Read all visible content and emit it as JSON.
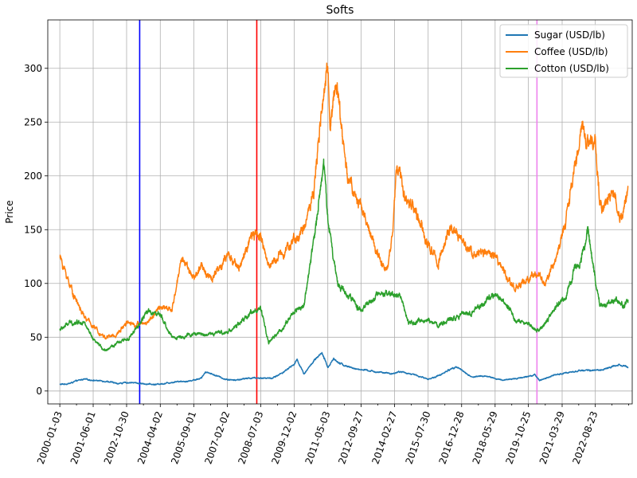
{
  "chart_data": {
    "type": "line",
    "title": "Softs",
    "xlabel": "",
    "ylabel": "Price",
    "xlim": [
      "1999-07-01",
      "2024-03-15"
    ],
    "ylim": [
      -12,
      345
    ],
    "grid": true,
    "legend_position": "top-right",
    "x_ticks": [
      "2000-01-03",
      "2001-06-01",
      "2002-10-30",
      "2004-04-02",
      "2005-09-01",
      "2007-02-02",
      "2008-07-03",
      "2009-12-02",
      "2011-05-03",
      "2012-09-27",
      "2014-02-27",
      "2015-07-30",
      "2016-12-28",
      "2018-05-29",
      "2019-10-25",
      "2021-03-29",
      "2022-08-23"
    ],
    "y_ticks": [
      0,
      50,
      100,
      150,
      200,
      250,
      300
    ],
    "vertical_lines": [
      {
        "date": "2003-05-20",
        "color": "#0000ff"
      },
      {
        "date": "2008-05-01",
        "color": "#ff0000"
      },
      {
        "date": "2020-03-05",
        "color": "#ee82ee"
      }
    ],
    "series": [
      {
        "name": "Sugar (USD/lb)",
        "color": "#1f77b4",
        "points": [
          [
            "2000-01-03",
            6
          ],
          [
            "2000-06-01",
            7
          ],
          [
            "2000-09-01",
            9
          ],
          [
            "2001-01-01",
            11
          ],
          [
            "2001-06-01",
            10
          ],
          [
            "2002-01-01",
            9
          ],
          [
            "2002-06-01",
            7
          ],
          [
            "2003-01-01",
            8
          ],
          [
            "2003-06-01",
            7
          ],
          [
            "2004-01-01",
            6
          ],
          [
            "2004-06-01",
            7
          ],
          [
            "2005-01-01",
            9
          ],
          [
            "2005-06-01",
            9
          ],
          [
            "2006-01-01",
            12
          ],
          [
            "2006-03-01",
            18
          ],
          [
            "2006-06-01",
            16
          ],
          [
            "2007-01-01",
            11
          ],
          [
            "2007-06-01",
            10
          ],
          [
            "2008-01-01",
            12
          ],
          [
            "2008-06-01",
            12
          ],
          [
            "2009-01-01",
            12
          ],
          [
            "2009-06-01",
            17
          ],
          [
            "2009-12-01",
            25
          ],
          [
            "2010-01-15",
            29
          ],
          [
            "2010-05-01",
            16
          ],
          [
            "2010-10-01",
            28
          ],
          [
            "2011-02-01",
            35
          ],
          [
            "2011-05-03",
            22
          ],
          [
            "2011-08-01",
            30
          ],
          [
            "2012-01-01",
            24
          ],
          [
            "2012-06-01",
            21
          ],
          [
            "2013-01-01",
            19
          ],
          [
            "2014-01-01",
            16
          ],
          [
            "2014-06-01",
            18
          ],
          [
            "2015-01-01",
            15
          ],
          [
            "2015-08-01",
            11
          ],
          [
            "2016-01-01",
            14
          ],
          [
            "2016-10-01",
            23
          ],
          [
            "2017-06-01",
            13
          ],
          [
            "2018-01-01",
            14
          ],
          [
            "2018-09-01",
            10
          ],
          [
            "2019-06-01",
            12
          ],
          [
            "2020-02-01",
            15
          ],
          [
            "2020-04-15",
            10
          ],
          [
            "2020-12-01",
            15
          ],
          [
            "2021-06-01",
            17
          ],
          [
            "2022-01-01",
            19
          ],
          [
            "2022-06-01",
            19
          ],
          [
            "2023-01-01",
            20
          ],
          [
            "2023-09-01",
            25
          ],
          [
            "2024-01-10",
            22
          ]
        ]
      },
      {
        "name": "Coffee (USD/lb)",
        "color": "#ff7f0e",
        "points": [
          [
            "2000-01-03",
            125
          ],
          [
            "2000-04-01",
            110
          ],
          [
            "2000-08-01",
            90
          ],
          [
            "2001-01-01",
            70
          ],
          [
            "2001-06-01",
            60
          ],
          [
            "2001-12-01",
            50
          ],
          [
            "2002-06-01",
            52
          ],
          [
            "2002-10-30",
            65
          ],
          [
            "2003-03-01",
            62
          ],
          [
            "2003-09-01",
            63
          ],
          [
            "2004-04-02",
            78
          ],
          [
            "2004-10-01",
            75
          ],
          [
            "2005-03-01",
            125
          ],
          [
            "2005-09-01",
            105
          ],
          [
            "2006-01-01",
            115
          ],
          [
            "2006-06-01",
            105
          ],
          [
            "2007-02-02",
            125
          ],
          [
            "2007-08-01",
            115
          ],
          [
            "2008-03-01",
            145
          ],
          [
            "2008-07-03",
            145
          ],
          [
            "2008-11-01",
            115
          ],
          [
            "2009-06-01",
            130
          ],
          [
            "2009-12-02",
            140
          ],
          [
            "2010-05-01",
            150
          ],
          [
            "2010-10-01",
            190
          ],
          [
            "2011-02-01",
            260
          ],
          [
            "2011-05-03",
            300
          ],
          [
            "2011-06-15",
            250
          ],
          [
            "2011-09-01",
            290
          ],
          [
            "2012-03-01",
            200
          ],
          [
            "2012-09-27",
            170
          ],
          [
            "2013-06-01",
            130
          ],
          [
            "2013-11-01",
            110
          ],
          [
            "2014-02-01",
            150
          ],
          [
            "2014-04-01",
            210
          ],
          [
            "2014-08-01",
            180
          ],
          [
            "2015-01-01",
            170
          ],
          [
            "2015-07-30",
            135
          ],
          [
            "2016-01-01",
            120
          ],
          [
            "2016-07-01",
            150
          ],
          [
            "2016-12-28",
            140
          ],
          [
            "2017-06-01",
            130
          ],
          [
            "2018-05-29",
            125
          ],
          [
            "2018-12-01",
            105
          ],
          [
            "2019-05-01",
            95
          ],
          [
            "2019-10-25",
            105
          ],
          [
            "2020-02-01",
            110
          ],
          [
            "2020-07-01",
            100
          ],
          [
            "2021-01-01",
            125
          ],
          [
            "2021-06-01",
            160
          ],
          [
            "2021-10-01",
            205
          ],
          [
            "2022-02-01",
            250
          ],
          [
            "2022-06-01",
            230
          ],
          [
            "2022-08-23",
            235
          ],
          [
            "2022-11-01",
            170
          ],
          [
            "2023-02-01",
            175
          ],
          [
            "2023-06-01",
            185
          ],
          [
            "2023-10-01",
            160
          ],
          [
            "2024-01-10",
            190
          ]
        ]
      },
      {
        "name": "Cotton (USD/lb)",
        "color": "#2ca02c",
        "points": [
          [
            "2000-01-03",
            57
          ],
          [
            "2000-06-01",
            63
          ],
          [
            "2001-01-01",
            65
          ],
          [
            "2001-06-01",
            47
          ],
          [
            "2001-12-01",
            38
          ],
          [
            "2002-06-01",
            44
          ],
          [
            "2002-10-30",
            48
          ],
          [
            "2003-03-01",
            55
          ],
          [
            "2003-10-01",
            75
          ],
          [
            "2004-04-02",
            70
          ],
          [
            "2004-10-01",
            50
          ],
          [
            "2005-03-01",
            50
          ],
          [
            "2005-09-01",
            53
          ],
          [
            "2006-06-01",
            53
          ],
          [
            "2007-02-02",
            55
          ],
          [
            "2007-08-01",
            62
          ],
          [
            "2008-03-01",
            75
          ],
          [
            "2008-07-03",
            75
          ],
          [
            "2008-11-01",
            45
          ],
          [
            "2009-06-01",
            58
          ],
          [
            "2009-12-02",
            74
          ],
          [
            "2010-05-01",
            80
          ],
          [
            "2010-10-01",
            140
          ],
          [
            "2011-03-01",
            215
          ],
          [
            "2011-05-03",
            160
          ],
          [
            "2011-10-01",
            100
          ],
          [
            "2012-03-01",
            90
          ],
          [
            "2012-09-27",
            75
          ],
          [
            "2013-06-01",
            88
          ],
          [
            "2014-02-27",
            90
          ],
          [
            "2014-06-01",
            88
          ],
          [
            "2014-10-01",
            62
          ],
          [
            "2015-07-30",
            66
          ],
          [
            "2016-01-01",
            61
          ],
          [
            "2016-12-28",
            72
          ],
          [
            "2017-06-01",
            73
          ],
          [
            "2018-05-29",
            90
          ],
          [
            "2018-12-01",
            78
          ],
          [
            "2019-05-01",
            66
          ],
          [
            "2019-10-25",
            62
          ],
          [
            "2020-03-01",
            55
          ],
          [
            "2020-07-01",
            62
          ],
          [
            "2021-01-01",
            80
          ],
          [
            "2021-06-01",
            87
          ],
          [
            "2021-10-01",
            112
          ],
          [
            "2022-02-01",
            125
          ],
          [
            "2022-05-01",
            150
          ],
          [
            "2022-08-23",
            105
          ],
          [
            "2022-11-01",
            78
          ],
          [
            "2023-03-01",
            80
          ],
          [
            "2023-07-01",
            84
          ],
          [
            "2023-11-01",
            80
          ],
          [
            "2024-01-10",
            85
          ]
        ]
      }
    ]
  }
}
